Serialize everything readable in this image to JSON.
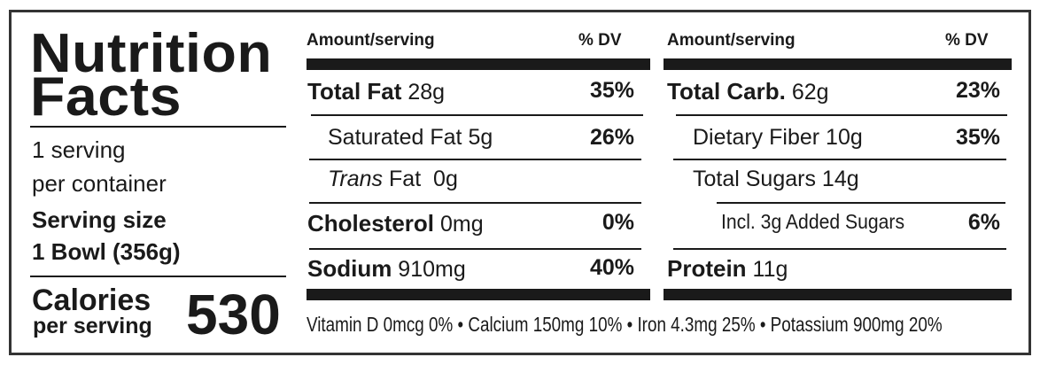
{
  "title_line1": "Nutrition",
  "title_line2": "Facts",
  "servings_line1": "1 serving",
  "servings_line2": "per container",
  "serving_size_label": "Serving size",
  "serving_size_value": "1 Bowl (356g)",
  "calories_label": "Calories",
  "calories_sub": "per serving",
  "calories_value": "530",
  "left_table": {
    "header_amount": "Amount/serving",
    "header_dv": "% DV",
    "rows": [
      {
        "name": "Total Fat",
        "amount": "28g",
        "dv": "35%"
      },
      {
        "name": "Saturated Fat",
        "amount": "5g",
        "dv": "26%"
      },
      {
        "name_italic": "Trans",
        "name": "Fat",
        "amount": "0g",
        "dv": ""
      },
      {
        "name": "Cholesterol",
        "amount": "0mg",
        "dv": "0%"
      },
      {
        "name": "Sodium",
        "amount": "910mg",
        "dv": "40%"
      }
    ]
  },
  "right_table": {
    "header_amount": "Amount/serving",
    "header_dv": "% DV",
    "rows": [
      {
        "name": "Total Carb.",
        "amount": "62g",
        "dv": "23%"
      },
      {
        "name": "Dietary Fiber",
        "amount": "10g",
        "dv": "35%"
      },
      {
        "name": "Total Sugars",
        "amount": "14g",
        "dv": ""
      },
      {
        "name": "Incl. 3g Added Sugars",
        "amount": "",
        "dv": "6%"
      },
      {
        "name": "Protein",
        "amount": "11g",
        "dv": ""
      }
    ]
  },
  "footer": "Vitamin D 0mcg 0% • Calcium 150mg 10% • Iron 4.3mg 25% • Potassium 900mg 20%"
}
